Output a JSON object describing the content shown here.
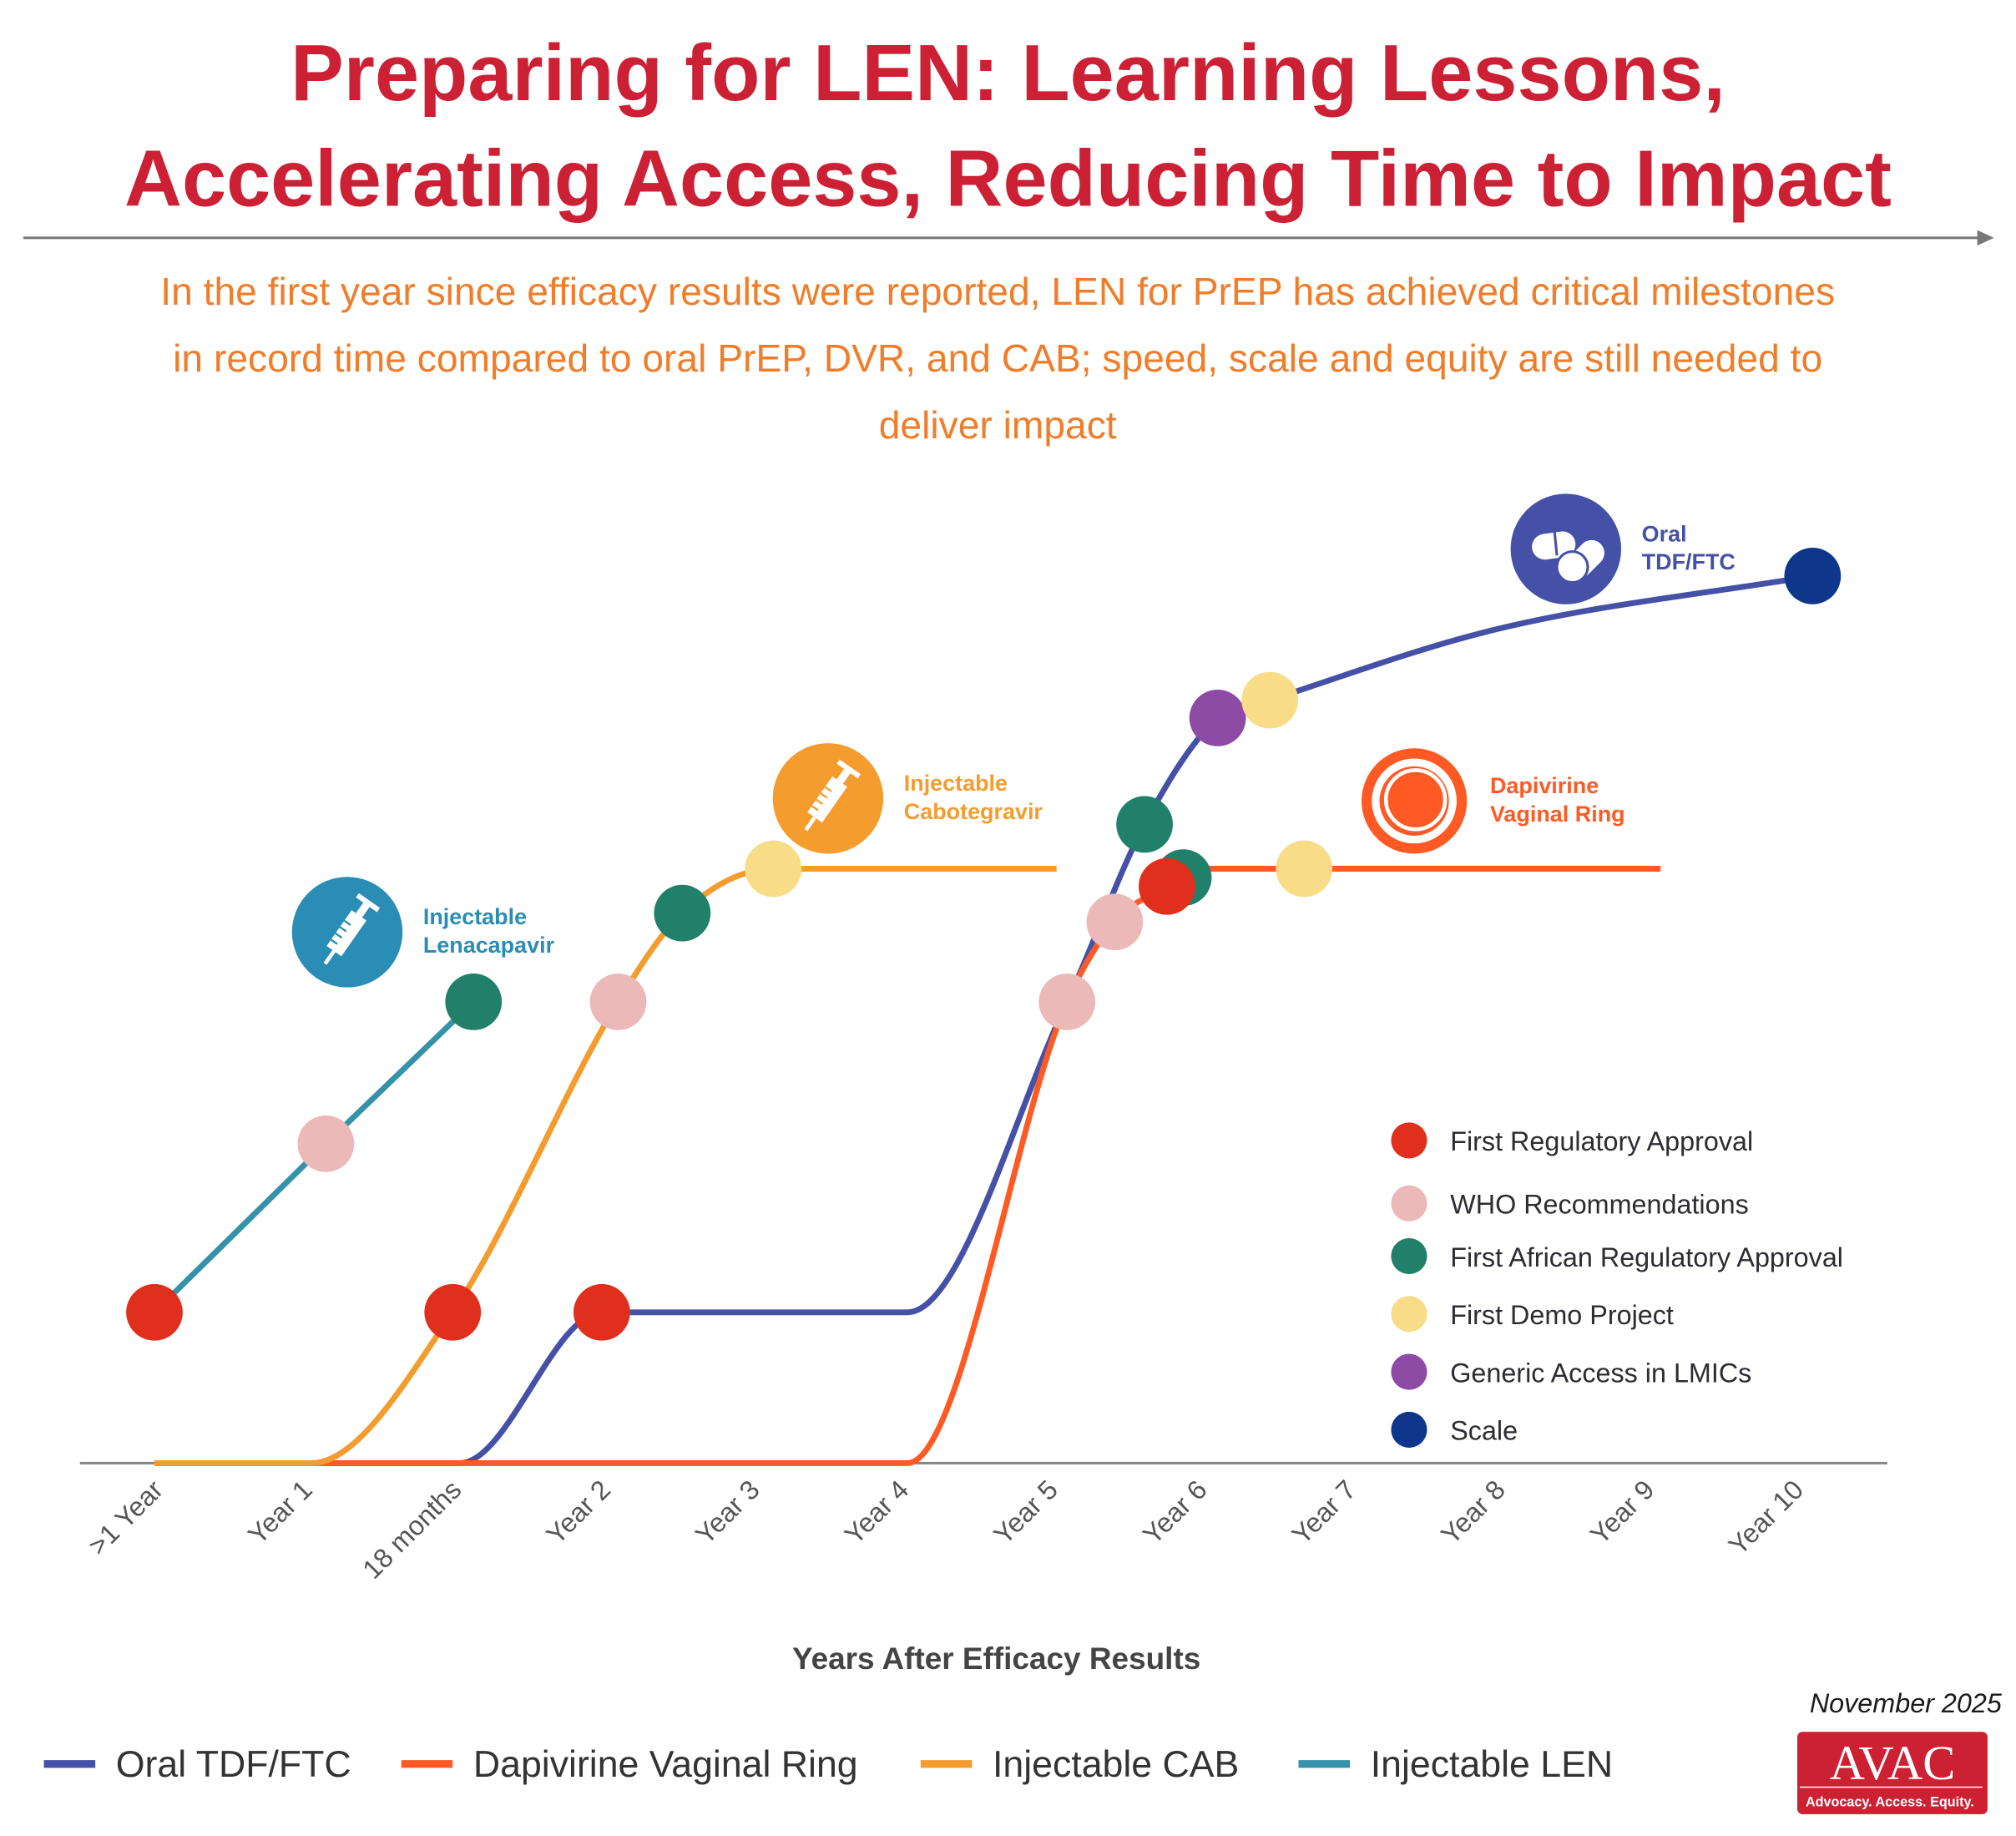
{
  "title": {
    "line1": "Preparing for LEN: Learning Lessons,",
    "line2": "Accelerating Access, Reducing Time to Impact"
  },
  "subtitle": {
    "line1": "In the first year since efficacy results were reported, LEN for PrEP has achieved critical milestones",
    "line2": "in record time compared to oral PrEP, DVR, and CAB; speed, scale and equity are still needed to",
    "line3": "deliver impact"
  },
  "date": "November 2025",
  "logo": {
    "text": "AVAC",
    "tagline": "Advocacy. Access. Equity.",
    "color": "#cc2133"
  },
  "colors": {
    "title": "#cc2035",
    "subtitle": "#ef7d2a"
  },
  "chart_data": {
    "type": "line",
    "title": "",
    "xlabel": "Years After Efficacy Results",
    "ylabel": "",
    "categories": [
      ">1 Year",
      "Year 1",
      "18 months",
      "Year 2",
      "Year 3",
      "Year 4",
      "Year 5",
      "Year 6",
      "Year 7",
      "Year 8",
      "Year 9",
      "Year 10"
    ],
    "ylim": [
      0,
      100
    ],
    "grid": false,
    "legend_placement": "right (milestones), bottom (products)",
    "milestone_types": [
      {
        "name": "First Regulatory Approval",
        "color": "#e02f1c"
      },
      {
        "name": "WHO Recommendations",
        "color": "#ebbab8"
      },
      {
        "name": "First African Regulatory Approval",
        "color": "#21806a"
      },
      {
        "name": "First Demo Project",
        "color": "#f8dc88"
      },
      {
        "name": "Generic Access in LMICs",
        "color": "#8e4ba6"
      },
      {
        "name": "Scale",
        "color": "#0e378c"
      }
    ],
    "series": [
      {
        "name": "Oral TDF/FTC",
        "label_lines": [
          "Oral",
          "TDF/FTC"
        ],
        "color": "#4451a6",
        "icon": "pills-icon",
        "smooth": true,
        "curve": [
          [
            0,
            0
          ],
          [
            2.05,
            0
          ],
          [
            3.0,
            17
          ],
          [
            3.3,
            17
          ],
          [
            5.05,
            17
          ],
          [
            6.12,
            52
          ],
          [
            6.64,
            72
          ],
          [
            7.13,
            84
          ],
          [
            7.48,
            86
          ],
          [
            9.0,
            94
          ],
          [
            11.12,
            100
          ]
        ],
        "milestones": [
          {
            "type": 0,
            "x": 3.0,
            "y": 17
          },
          {
            "type": 1,
            "x": 6.12,
            "y": 52
          },
          {
            "type": 2,
            "x": 6.64,
            "y": 72
          },
          {
            "type": 4,
            "x": 7.13,
            "y": 84
          },
          {
            "type": 3,
            "x": 7.48,
            "y": 86
          },
          {
            "type": 5,
            "x": 11.12,
            "y": 100
          }
        ]
      },
      {
        "name": "Dapivirine Vaginal Ring",
        "label_lines": [
          "Dapivirine",
          "Vaginal Ring"
        ],
        "color": "#ff5a24",
        "icon": "vaginal-ring-icon",
        "smooth": true,
        "curve": [
          [
            0,
            0
          ],
          [
            5.05,
            0
          ],
          [
            6.12,
            52
          ],
          [
            6.44,
            61
          ],
          [
            6.79,
            65
          ],
          [
            7.05,
            67
          ],
          [
            10.1,
            67
          ]
        ],
        "milestones": [
          {
            "type": 1,
            "x": 6.44,
            "y": 61
          },
          {
            "type": 2,
            "x": 6.9,
            "y": 66
          },
          {
            "type": 0,
            "x": 6.79,
            "y": 65
          },
          {
            "type": 3,
            "x": 7.71,
            "y": 67
          }
        ]
      },
      {
        "name": "Injectable CAB",
        "label_lines": [
          "Injectable",
          "Cabotegravir"
        ],
        "color": "#f59c2f",
        "icon": "syringe-icon",
        "smooth": true,
        "curve": [
          [
            0,
            0
          ],
          [
            1.05,
            0
          ],
          [
            2.0,
            17
          ],
          [
            3.11,
            52
          ],
          [
            3.54,
            62
          ],
          [
            4.15,
            67
          ],
          [
            6.05,
            67
          ]
        ],
        "milestones": [
          {
            "type": 0,
            "x": 2.0,
            "y": 17
          },
          {
            "type": 1,
            "x": 3.11,
            "y": 52
          },
          {
            "type": 2,
            "x": 3.54,
            "y": 62
          },
          {
            "type": 3,
            "x": 4.15,
            "y": 67
          }
        ]
      },
      {
        "name": "Injectable LEN",
        "label_lines": [
          "Injectable",
          "Lenacapavir"
        ],
        "color": "#3592a8",
        "icon_color": "#2a8db5",
        "icon": "syringe-icon",
        "smooth": false,
        "curve": [
          [
            0,
            17
          ],
          [
            1.15,
            36
          ],
          [
            2.14,
            52
          ]
        ],
        "milestones": [
          {
            "type": 0,
            "x": 0,
            "y": 17
          },
          {
            "type": 1,
            "x": 1.15,
            "y": 36
          },
          {
            "type": 2,
            "x": 2.14,
            "y": 52
          }
        ]
      }
    ]
  }
}
